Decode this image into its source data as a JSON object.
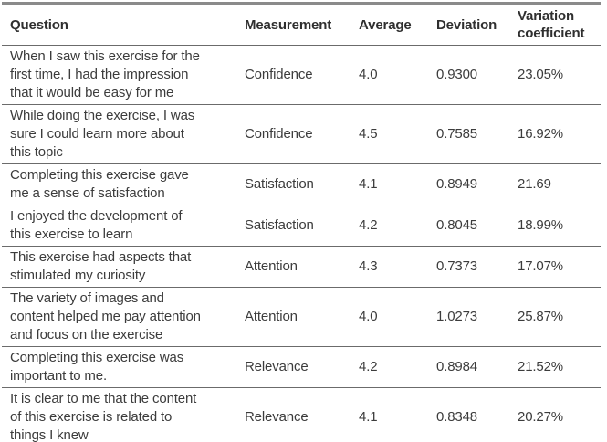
{
  "table": {
    "headers": {
      "question": "Question",
      "measurement": "Measurement",
      "average": "Average",
      "deviation": "Deviation",
      "variation": "Variation coefficient"
    },
    "rows": [
      {
        "question": "When I saw this exercise for the\nfirst time, I had the impression\nthat it would be easy for me",
        "measurement": "Confidence",
        "average": "4.0",
        "deviation": "0.9300",
        "variation": "23.05%"
      },
      {
        "question": "While doing the exercise, I was\nsure I could learn more about\nthis topic",
        "measurement": "Confidence",
        "average": "4.5",
        "deviation": "0.7585",
        "variation": "16.92%"
      },
      {
        "question": "Completing this exercise gave\nme a sense of satisfaction",
        "measurement": "Satisfaction",
        "average": "4.1",
        "deviation": "0.8949",
        "variation": "21.69"
      },
      {
        "question": "I enjoyed the development of\nthis exercise to learn",
        "measurement": "Satisfaction",
        "average": "4.2",
        "deviation": "0.8045",
        "variation": "18.99%"
      },
      {
        "question": "This exercise had aspects that\nstimulated my curiosity",
        "measurement": "Attention",
        "average": "4.3",
        "deviation": "0.7373",
        "variation": "17.07%"
      },
      {
        "question": "The variety of images and\ncontent helped me pay attention\nand focus on the exercise",
        "measurement": "Attention",
        "average": "4.0",
        "deviation": "1.0273",
        "variation": "25.87%"
      },
      {
        "question": "Completing this exercise was\nimportant to me.",
        "measurement": "Relevance",
        "average": "4.2",
        "deviation": "0.8984",
        "variation": "21.52%"
      },
      {
        "question": "It is clear to me that the content\nof this exercise is related to\nthings I knew",
        "measurement": "Relevance",
        "average": "4.1",
        "deviation": "0.8348",
        "variation": "20.27%"
      }
    ],
    "colors": {
      "text": "#3c3c3c",
      "border_outer": "#8a8a8a",
      "border_inner": "#6b6b6b",
      "background": "#ffffff"
    }
  }
}
